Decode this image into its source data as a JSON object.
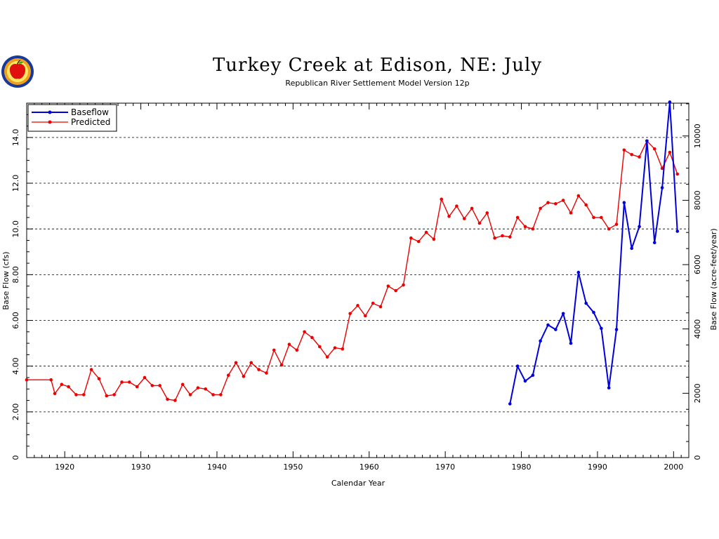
{
  "chart_data": {
    "type": "line",
    "title": "Turkey Creek at Edison, NE:  July",
    "subtitle": "Republican River Settlement Model Version 12p",
    "xlabel": "Calendar Year",
    "ylabel": "Base Flow (cfs)",
    "ylabel_right": "Base Flow (acre-feet/year)",
    "xlim": [
      1915,
      2002
    ],
    "ylim": [
      0,
      15.5
    ],
    "ylim_right": [
      0,
      11020
    ],
    "x_ticks": [
      1920,
      1930,
      1940,
      1950,
      1960,
      1970,
      1980,
      1990,
      2000
    ],
    "x_tick_labels": [
      "1920",
      "1930",
      "1940",
      "1950",
      "1960",
      "1970",
      "1980",
      "1990",
      "2000"
    ],
    "y_ticks": [
      0,
      2,
      4,
      6,
      8,
      10,
      12,
      14
    ],
    "y_tick_labels": [
      "0",
      "2.00",
      "4.00",
      "6.00",
      "8.00",
      "10.0",
      "12.0",
      "14.0"
    ],
    "y_ticks_right": [
      0,
      2000,
      4000,
      6000,
      8000,
      10000
    ],
    "y_tick_labels_right": [
      "0",
      "2000",
      "4000",
      "6000",
      "8000",
      "10000"
    ],
    "grid": "horizontal dashed",
    "legend_position": "top-left",
    "series": [
      {
        "name": "Baseflow",
        "color": "#0000dd",
        "points": [
          [
            1978.5,
            2.35
          ],
          [
            1979.5,
            4.0
          ],
          [
            1980.5,
            3.35
          ],
          [
            1981.5,
            3.6
          ],
          [
            1982.5,
            5.1
          ],
          [
            1983.5,
            5.8
          ],
          [
            1984.5,
            5.6
          ],
          [
            1985.5,
            6.3
          ],
          [
            1986.5,
            5.0
          ],
          [
            1987.5,
            8.1
          ],
          [
            1988.5,
            6.75
          ],
          [
            1989.5,
            6.35
          ],
          [
            1990.5,
            5.65
          ],
          [
            1991.5,
            3.05
          ],
          [
            1992.5,
            5.6
          ],
          [
            1993.5,
            11.15
          ],
          [
            1994.5,
            9.15
          ],
          [
            1995.5,
            10.1
          ],
          [
            1996.5,
            13.85
          ],
          [
            1997.5,
            9.4
          ],
          [
            1998.5,
            11.8
          ],
          [
            1999.5,
            15.55
          ],
          [
            2000.5,
            9.9
          ]
        ]
      },
      {
        "name": "Predicted",
        "color": "#ee0000",
        "points": [
          [
            1915,
            3.4
          ],
          [
            1918.2,
            3.4
          ],
          [
            1918.7,
            2.8
          ],
          [
            1919.6,
            3.2
          ],
          [
            1920.5,
            3.1
          ],
          [
            1921.5,
            2.75
          ],
          [
            1922.5,
            2.75
          ],
          [
            1923.5,
            3.85
          ],
          [
            1924.5,
            3.45
          ],
          [
            1925.5,
            2.7
          ],
          [
            1926.5,
            2.75
          ],
          [
            1927.5,
            3.3
          ],
          [
            1928.5,
            3.3
          ],
          [
            1929.5,
            3.1
          ],
          [
            1930.5,
            3.5
          ],
          [
            1931.5,
            3.15
          ],
          [
            1932.5,
            3.15
          ],
          [
            1933.5,
            2.55
          ],
          [
            1934.5,
            2.5
          ],
          [
            1935.5,
            3.2
          ],
          [
            1936.5,
            2.75
          ],
          [
            1937.5,
            3.05
          ],
          [
            1938.5,
            3.0
          ],
          [
            1939.5,
            2.75
          ],
          [
            1940.5,
            2.75
          ],
          [
            1941.5,
            3.6
          ],
          [
            1942.5,
            4.15
          ],
          [
            1943.5,
            3.55
          ],
          [
            1944.5,
            4.15
          ],
          [
            1945.5,
            3.85
          ],
          [
            1946.5,
            3.7
          ],
          [
            1947.5,
            4.7
          ],
          [
            1948.5,
            4.05
          ],
          [
            1949.5,
            4.95
          ],
          [
            1950.5,
            4.7
          ],
          [
            1951.5,
            5.5
          ],
          [
            1952.5,
            5.25
          ],
          [
            1953.5,
            4.85
          ],
          [
            1954.5,
            4.4
          ],
          [
            1955.5,
            4.8
          ],
          [
            1956.5,
            4.75
          ],
          [
            1957.5,
            6.3
          ],
          [
            1958.5,
            6.65
          ],
          [
            1959.5,
            6.2
          ],
          [
            1960.5,
            6.75
          ],
          [
            1961.5,
            6.6
          ],
          [
            1962.5,
            7.5
          ],
          [
            1963.5,
            7.3
          ],
          [
            1964.5,
            7.55
          ],
          [
            1965.5,
            9.6
          ],
          [
            1966.5,
            9.45
          ],
          [
            1967.5,
            9.85
          ],
          [
            1968.5,
            9.55
          ],
          [
            1969.5,
            11.3
          ],
          [
            1970.5,
            10.55
          ],
          [
            1971.5,
            11.0
          ],
          [
            1972.5,
            10.45
          ],
          [
            1973.5,
            10.9
          ],
          [
            1974.5,
            10.25
          ],
          [
            1975.5,
            10.7
          ],
          [
            1976.5,
            9.6
          ],
          [
            1977.5,
            9.7
          ],
          [
            1978.5,
            9.65
          ],
          [
            1979.5,
            10.5
          ],
          [
            1980.5,
            10.1
          ],
          [
            1981.5,
            10.0
          ],
          [
            1982.5,
            10.9
          ],
          [
            1983.5,
            11.15
          ],
          [
            1984.5,
            11.1
          ],
          [
            1985.5,
            11.25
          ],
          [
            1986.5,
            10.7
          ],
          [
            1987.5,
            11.45
          ],
          [
            1988.5,
            11.05
          ],
          [
            1989.5,
            10.5
          ],
          [
            1990.5,
            10.5
          ],
          [
            1991.5,
            10.0
          ],
          [
            1992.5,
            10.2
          ],
          [
            1993.5,
            13.45
          ],
          [
            1994.5,
            13.25
          ],
          [
            1995.5,
            13.15
          ],
          [
            1996.5,
            13.85
          ],
          [
            1997.5,
            13.5
          ],
          [
            1998.5,
            12.65
          ],
          [
            1999.5,
            13.35
          ],
          [
            2000.5,
            12.4
          ]
        ]
      }
    ]
  }
}
